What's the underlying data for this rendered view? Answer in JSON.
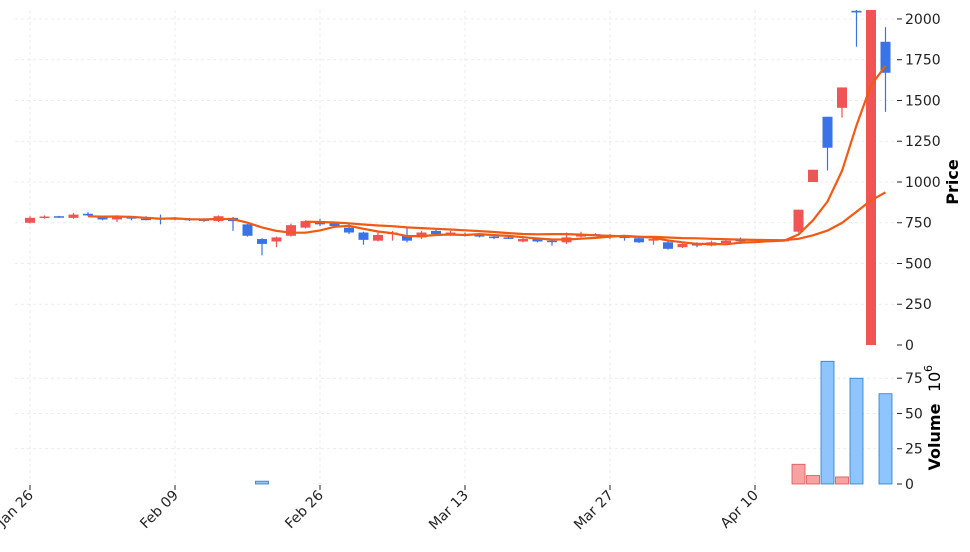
{
  "chart_data": [
    {
      "type": "candlestick",
      "panel": "price",
      "ylabel": "Price",
      "ylim": [
        0,
        2055
      ],
      "yticks": [
        0,
        250,
        500,
        750,
        1000,
        1250,
        1500,
        1750,
        2000
      ],
      "grid": true,
      "x_tick_labels": [
        {
          "index": 0,
          "label": "Jan 26"
        },
        {
          "index": 10,
          "label": "Feb 09"
        },
        {
          "index": 20,
          "label": "Feb 26"
        },
        {
          "index": 30,
          "label": "Mar 13"
        },
        {
          "index": 40,
          "label": "Mar 27"
        },
        {
          "index": 50,
          "label": "Apr 10"
        }
      ],
      "colors": {
        "up": "#f05454",
        "down": "#3a72e8",
        "ma": "#f05a12"
      },
      "moving_averages": [
        5,
        20
      ],
      "ohlc": [
        [
          750,
          790,
          745,
          780
        ],
        [
          782,
          795,
          775,
          788
        ],
        [
          790,
          792,
          780,
          785
        ],
        [
          780,
          810,
          775,
          800
        ],
        [
          805,
          815,
          790,
          795
        ],
        [
          790,
          792,
          765,
          770
        ],
        [
          770,
          795,
          755,
          790
        ],
        [
          785,
          790,
          765,
          775
        ],
        [
          775,
          790,
          765,
          770
        ],
        [
          778,
          800,
          740,
          770
        ],
        [
          770,
          785,
          765,
          778
        ],
        [
          775,
          780,
          760,
          765
        ],
        [
          770,
          778,
          755,
          766
        ],
        [
          760,
          795,
          755,
          790
        ],
        [
          780,
          785,
          700,
          760
        ],
        [
          740,
          742,
          665,
          670
        ],
        [
          650,
          655,
          550,
          620
        ],
        [
          635,
          665,
          600,
          660
        ],
        [
          670,
          745,
          665,
          735
        ],
        [
          720,
          765,
          715,
          760
        ],
        [
          755,
          775,
          730,
          740
        ],
        [
          745,
          750,
          720,
          730
        ],
        [
          720,
          745,
          680,
          690
        ],
        [
          690,
          695,
          615,
          645
        ],
        [
          640,
          690,
          635,
          675
        ],
        [
          680,
          700,
          640,
          690
        ],
        [
          670,
          720,
          630,
          640
        ],
        [
          660,
          700,
          650,
          690
        ],
        [
          700,
          710,
          670,
          680
        ],
        [
          680,
          700,
          670,
          690
        ],
        [
          680,
          690,
          665,
          675
        ],
        [
          675,
          680,
          660,
          665
        ],
        [
          665,
          675,
          650,
          660
        ],
        [
          660,
          670,
          650,
          655
        ],
        [
          635,
          665,
          630,
          650
        ],
        [
          650,
          660,
          630,
          635
        ],
        [
          640,
          645,
          610,
          635
        ],
        [
          630,
          690,
          620,
          660
        ],
        [
          665,
          695,
          660,
          680
        ],
        [
          680,
          685,
          670,
          675
        ],
        [
          670,
          680,
          650,
          675
        ],
        [
          665,
          670,
          640,
          660
        ],
        [
          655,
          660,
          625,
          630
        ],
        [
          640,
          660,
          615,
          650
        ],
        [
          630,
          640,
          585,
          590
        ],
        [
          600,
          625,
          595,
          620
        ],
        [
          620,
          630,
          600,
          610
        ],
        [
          610,
          640,
          605,
          630
        ],
        [
          625,
          650,
          620,
          640
        ],
        [
          645,
          660,
          620,
          640
        ],
        [
          630,
          640,
          625,
          635
        ],
        [
          635,
          645,
          630,
          640
        ],
        [
          640,
          650,
          635,
          645
        ],
        [
          695,
          830,
          690,
          830
        ],
        [
          1000,
          1075,
          1000,
          1075
        ],
        [
          1400,
          1400,
          1070,
          1210
        ],
        [
          1455,
          1580,
          1395,
          1580
        ],
        [
          2050,
          2055,
          1830,
          2040
        ],
        [
          0,
          2060,
          0,
          2060
        ],
        [
          1860,
          1950,
          1430,
          1670
        ]
      ]
    },
    {
      "type": "bar",
      "panel": "volume",
      "ylabel": "Volume",
      "scale_label": "10",
      "scale_exp": "6",
      "ylim": [
        0,
        95
      ],
      "yticks": [
        0,
        25,
        50,
        75
      ],
      "colors": {
        "up": "#f7a3a3",
        "down": "#8ec5ff",
        "edge_down": "#2b7bc4",
        "edge_up": "#e05050"
      },
      "values": [
        0,
        0,
        0,
        0,
        0,
        0,
        0,
        0,
        0,
        0,
        0,
        0,
        0,
        0,
        0,
        0,
        2,
        0,
        0,
        0,
        0,
        0,
        0,
        0,
        0,
        0,
        0,
        0,
        0,
        0,
        0,
        0,
        0,
        0,
        0,
        0,
        0,
        0,
        0,
        0,
        0,
        0,
        0,
        0,
        0,
        0,
        0,
        0,
        0,
        0,
        0,
        0,
        0,
        14,
        6,
        87,
        5,
        75,
        0,
        64
      ]
    }
  ]
}
